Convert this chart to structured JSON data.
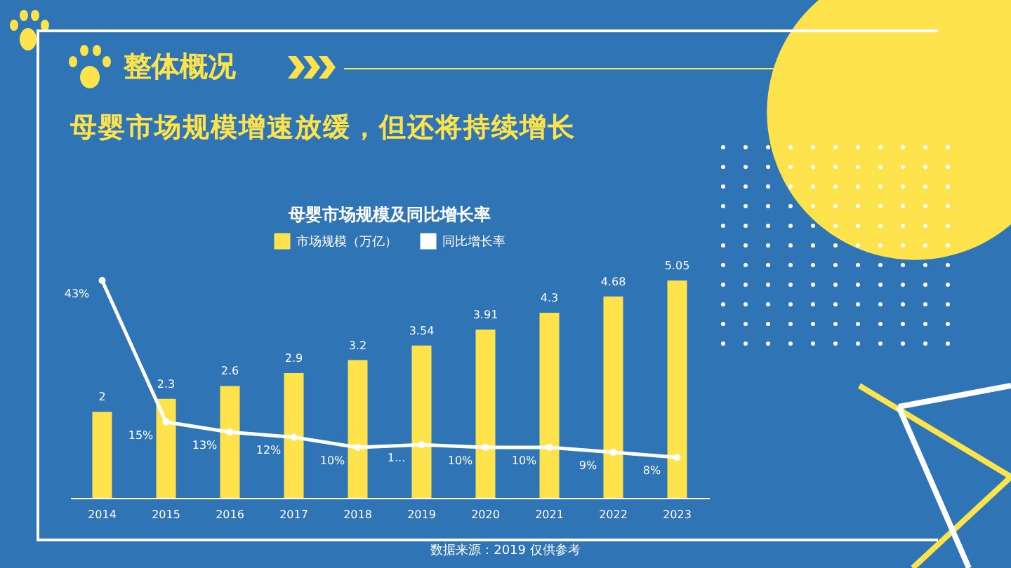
{
  "chart_data": {
    "type": "bar",
    "title": "母婴市场规模及同比增长率",
    "annotations": [
      "整体概况",
      "母婴市场规模增速放缓，但还将持续增长",
      "数据来源：2019 仅供参考"
    ],
    "categories": [
      "2014",
      "2015",
      "2016",
      "2017",
      "2018",
      "2019",
      "2020",
      "2021",
      "2022",
      "2023"
    ],
    "series": [
      {
        "name": "市场规模（万亿）",
        "color": "#ffe34d",
        "values": [
          2,
          2.3,
          2.6,
          2.9,
          3.2,
          3.54,
          3.91,
          4.3,
          4.68,
          5.05
        ]
      },
      {
        "name": "同比增长率",
        "type": "line",
        "axis": "y2",
        "color": "#ffffff",
        "marker": "circle",
        "values": [
          43,
          15,
          13,
          12,
          10,
          10.5,
          10,
          10,
          9,
          8
        ],
        "value_labels": [
          "43%",
          "15%",
          "13%",
          "12%",
          "10%",
          "1...",
          "10%",
          "10%",
          "9%",
          "8%"
        ]
      }
    ],
    "data_labels": true,
    "tick_labels": "x",
    "legend": "top"
  }
}
